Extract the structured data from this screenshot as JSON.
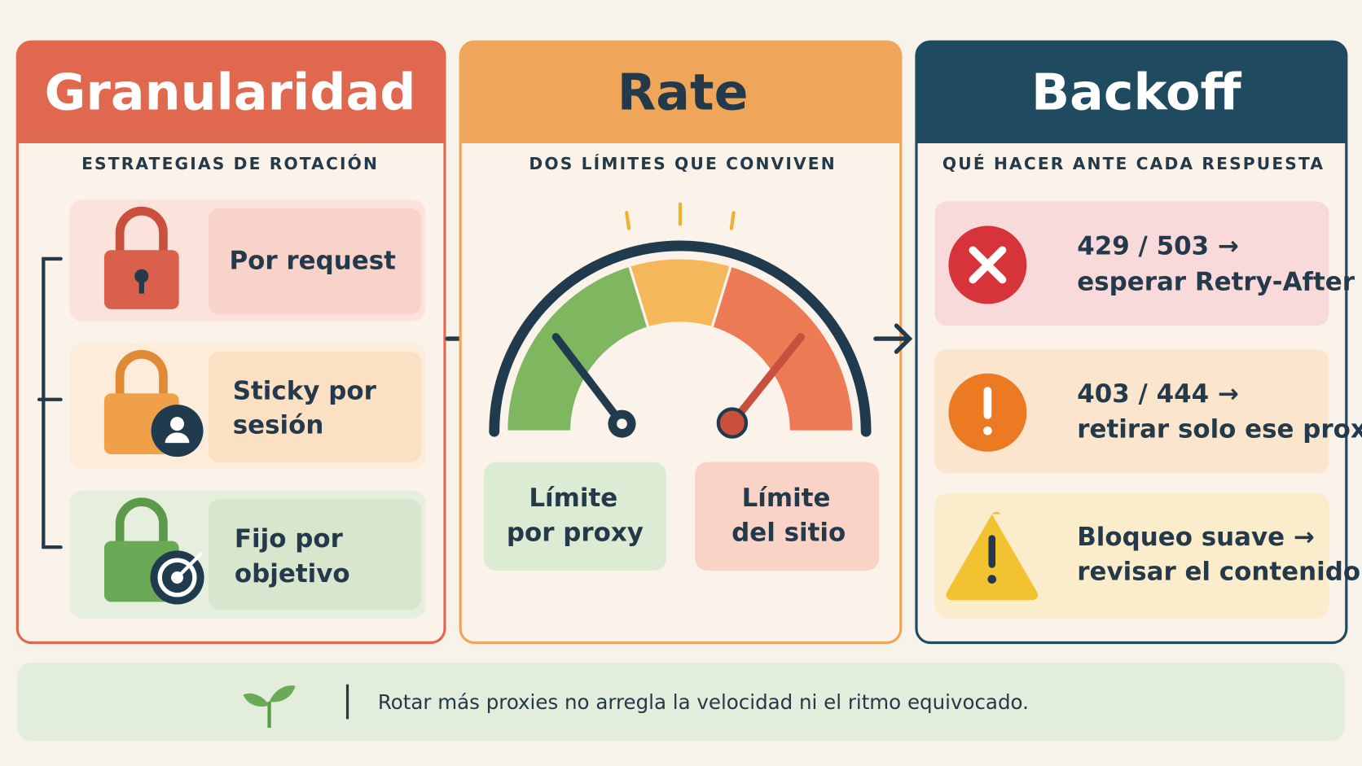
{
  "panels": [
    {
      "title": "Granularidad",
      "subtitle": "ESTRATEGIAS DE ROTACIÓN",
      "items": [
        [
          "Por request"
        ],
        [
          "Sticky por",
          "sesión"
        ],
        [
          "Fijo por",
          "objetivo"
        ]
      ]
    },
    {
      "title": "Rate",
      "subtitle": "DOS LÍMITES QUE CONVIVEN",
      "items": [
        [
          "Límite",
          "por proxy"
        ],
        [
          "Límite",
          "del sitio"
        ]
      ]
    },
    {
      "title": "Backoff",
      "subtitle": "QUÉ HACER ANTE CADA RESPUESTA",
      "items": [
        [
          "429 / 503 →",
          "esperar Retry-After"
        ],
        [
          "403 / 444 →",
          "retirar solo ese proxy"
        ],
        [
          "Bloqueo suave →",
          "revisar el contenido"
        ]
      ]
    }
  ],
  "footer": "Rotar más proxies no arregla la velocidad ni el ritmo equivocado."
}
